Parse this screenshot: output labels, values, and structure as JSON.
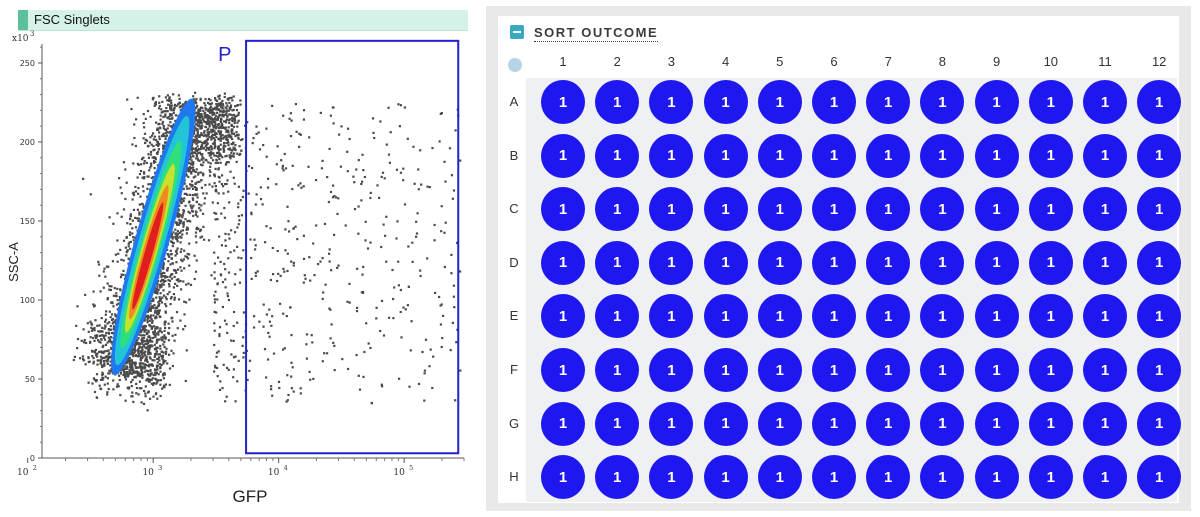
{
  "plot": {
    "header_title": "FSC Singlets",
    "gate_label": "P"
  },
  "plate": {
    "title": "SORT OUTCOME",
    "columns": [
      "1",
      "2",
      "3",
      "4",
      "5",
      "6",
      "7",
      "8",
      "9",
      "10",
      "11",
      "12"
    ],
    "rows": [
      "A",
      "B",
      "C",
      "D",
      "E",
      "F",
      "G",
      "H"
    ],
    "well_values": [
      [
        1,
        1,
        1,
        1,
        1,
        1,
        1,
        1,
        1,
        1,
        1,
        1
      ],
      [
        1,
        1,
        1,
        1,
        1,
        1,
        1,
        1,
        1,
        1,
        1,
        1
      ],
      [
        1,
        1,
        1,
        1,
        1,
        1,
        1,
        1,
        1,
        1,
        1,
        1
      ],
      [
        1,
        1,
        1,
        1,
        1,
        1,
        1,
        1,
        1,
        1,
        1,
        1
      ],
      [
        1,
        1,
        1,
        1,
        1,
        1,
        1,
        1,
        1,
        1,
        1,
        1
      ],
      [
        1,
        1,
        1,
        1,
        1,
        1,
        1,
        1,
        1,
        1,
        1,
        1
      ],
      [
        1,
        1,
        1,
        1,
        1,
        1,
        1,
        1,
        1,
        1,
        1,
        1
      ],
      [
        1,
        1,
        1,
        1,
        1,
        1,
        1,
        1,
        1,
        1,
        1,
        1
      ]
    ],
    "well_color": "#1f17f0",
    "panel_color": "#e9e9e9"
  },
  "chart_data": {
    "type": "scatter",
    "title": "FSC Singlets",
    "xlabel": "GFP",
    "ylabel": "SSC-A",
    "y_multiplier_label": "x10",
    "y_multiplier_exp": "3",
    "x_scale": "log",
    "xlim": [
      130,
      300000
    ],
    "ylim": [
      0,
      262000
    ],
    "x_ticks": [
      {
        "value": 100,
        "base": "10",
        "exp": "2"
      },
      {
        "value": 1000,
        "base": "10",
        "exp": "3"
      },
      {
        "value": 10000,
        "base": "10",
        "exp": "4"
      },
      {
        "value": 100000,
        "base": "10",
        "exp": "5"
      }
    ],
    "y_ticks": [
      {
        "value": 0,
        "label": "0"
      },
      {
        "value": 50000,
        "label": "50"
      },
      {
        "value": 100000,
        "label": "100"
      },
      {
        "value": 150000,
        "label": "150"
      },
      {
        "value": 200000,
        "label": "200"
      },
      {
        "value": 250000,
        "label": "250"
      }
    ],
    "gate": {
      "name": "P",
      "x": [
        5500,
        270000
      ],
      "y": [
        3000,
        264000
      ]
    },
    "populations": [
      {
        "name": "main",
        "x_start": 500,
        "x_end": 2000,
        "y_start": 55000,
        "y_end": 225000,
        "color": "#4a4a4a"
      }
    ],
    "density_colors": [
      "#1e78f0",
      "#22c4d8",
      "#2ee07a",
      "#c8e02e",
      "#f08a1e",
      "#e01e1e"
    ],
    "grid": false,
    "legend": "none"
  }
}
